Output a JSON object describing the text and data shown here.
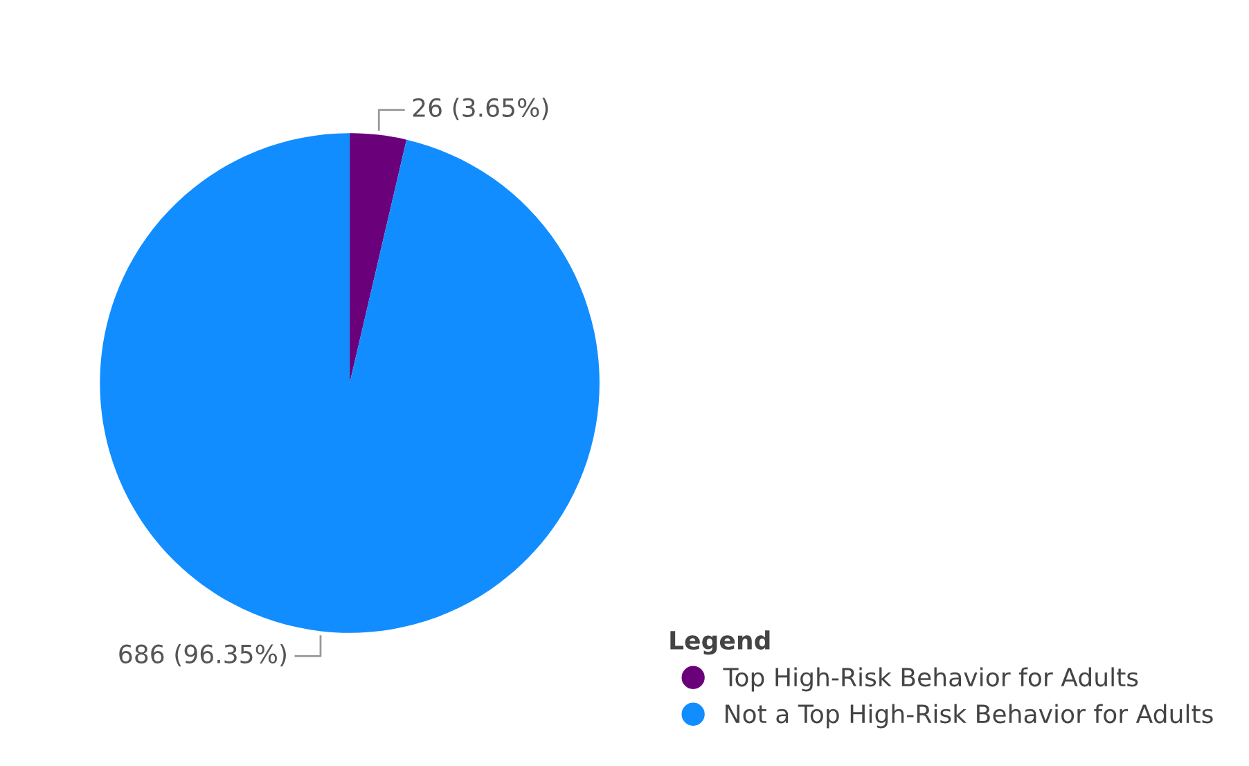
{
  "chart_data": {
    "type": "pie",
    "legend_title": "Legend",
    "legend": "bottom right",
    "categories": [
      "Top High-Risk Behavior for Adults",
      "Not a Top High-Risk Behavior for Adults"
    ],
    "values": [
      26,
      686
    ],
    "colors": [
      "#6b007b",
      "#118dff"
    ],
    "value_labels": [
      "26 (3.65%)",
      "686 (96.35%)"
    ]
  }
}
